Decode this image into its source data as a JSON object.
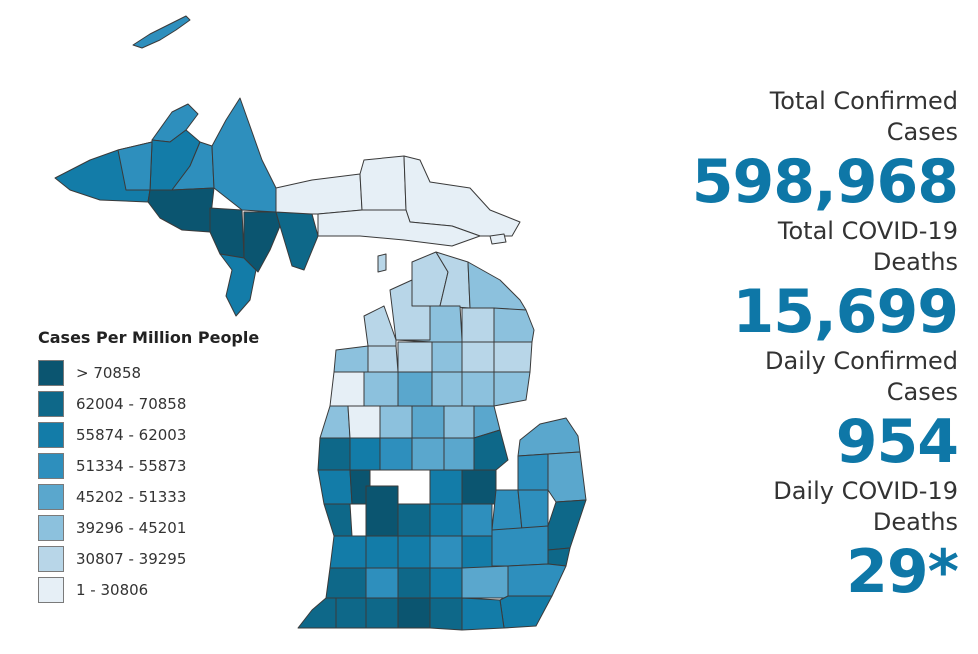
{
  "legend": {
    "title": "Cases Per Million People",
    "items": [
      {
        "label": "> 70858",
        "color": "#0b5570"
      },
      {
        "label": "62004 - 70858",
        "color": "#0e6889"
      },
      {
        "label": "55874 - 62003",
        "color": "#137ca8"
      },
      {
        "label": "51334 - 55873",
        "color": "#2e8fbd"
      },
      {
        "label": "45202 - 51333",
        "color": "#5aa7cd"
      },
      {
        "label": "39296 - 45201",
        "color": "#8cc1dd"
      },
      {
        "label": "30807 - 39295",
        "color": "#b8d6e8"
      },
      {
        "label": "1 - 30806",
        "color": "#e6eff6"
      }
    ]
  },
  "stats": [
    {
      "label_line1": "Total Confirmed",
      "label_line2": "Cases",
      "value": "598,968"
    },
    {
      "label_line1": "Total COVID-19",
      "label_line2": "Deaths",
      "value": "15,699"
    },
    {
      "label_line1": "Daily Confirmed",
      "label_line2": "Cases",
      "value": "954"
    },
    {
      "label_line1": "Daily COVID-19",
      "label_line2": "Deaths",
      "value": "29*"
    }
  ]
}
